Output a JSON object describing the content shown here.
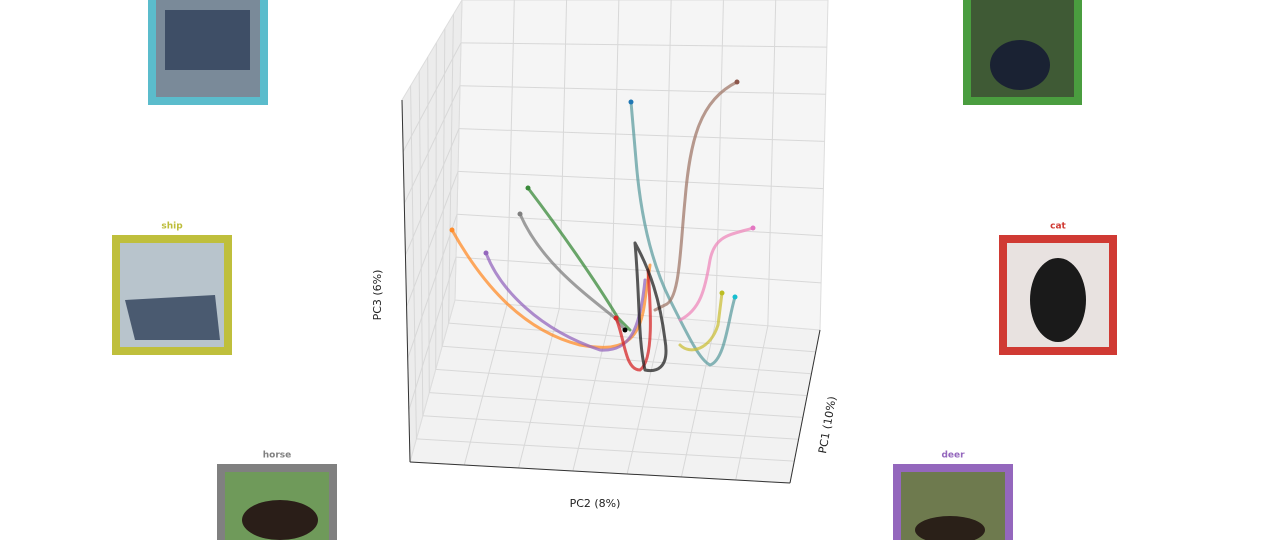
{
  "axes": {
    "x": "PC2 (8%)",
    "y": "PC1 (10%)",
    "z": "PC3 (6%)"
  },
  "panels": [
    {
      "label": "ship"
    },
    {
      "label": "cat"
    },
    {
      "label": "horse"
    },
    {
      "label": "deer"
    }
  ]
}
